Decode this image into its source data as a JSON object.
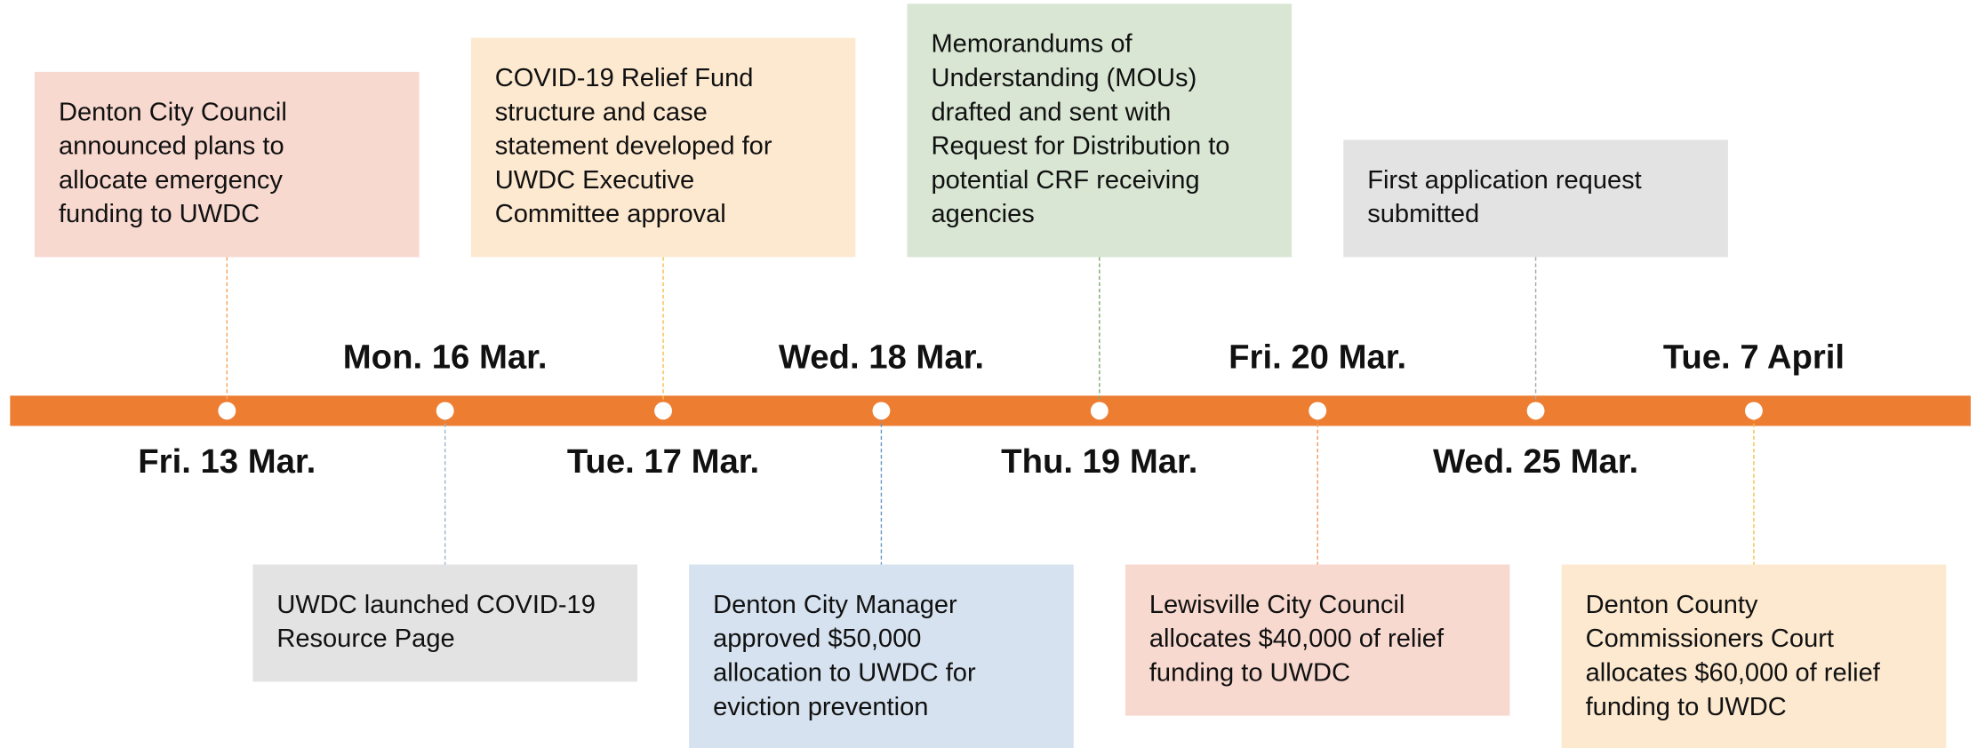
{
  "events": [
    {
      "date": "Fri. 13 Mar.",
      "lines": [
        "Denton City Council",
        "announced plans to",
        "allocate emergency",
        "funding to UWDC"
      ]
    },
    {
      "date": "Mon. 16 Mar.",
      "lines": [
        "UWDC launched COVID-19",
        "Resource Page"
      ]
    },
    {
      "date": "Tue. 17 Mar.",
      "lines": [
        "COVID-19 Relief Fund",
        "structure and case",
        "statement developed for",
        "UWDC Executive",
        "Committee approval"
      ]
    },
    {
      "date": "Wed. 18 Mar.",
      "lines": [
        "Denton City Manager",
        "approved $50,000",
        "allocation to UWDC for",
        "eviction prevention"
      ]
    },
    {
      "date": "Thu. 19 Mar.",
      "lines": [
        "Memorandums of",
        "Understanding (MOUs)",
        "drafted and sent with",
        "Request for Distribution to",
        "potential CRF receiving",
        "agencies"
      ]
    },
    {
      "date": "Fri. 20 Mar.",
      "lines": [
        "Lewisville City Council",
        "allocates $40,000 of relief",
        "funding to UWDC"
      ]
    },
    {
      "date": "Wed. 25 Mar.",
      "lines": [
        "First application request",
        "submitted"
      ]
    },
    {
      "date": "Tue. 7 April",
      "lines": [
        "Denton County",
        "Commissioners Court",
        "allocates $60,000 of relief",
        "funding to UWDC"
      ]
    }
  ]
}
